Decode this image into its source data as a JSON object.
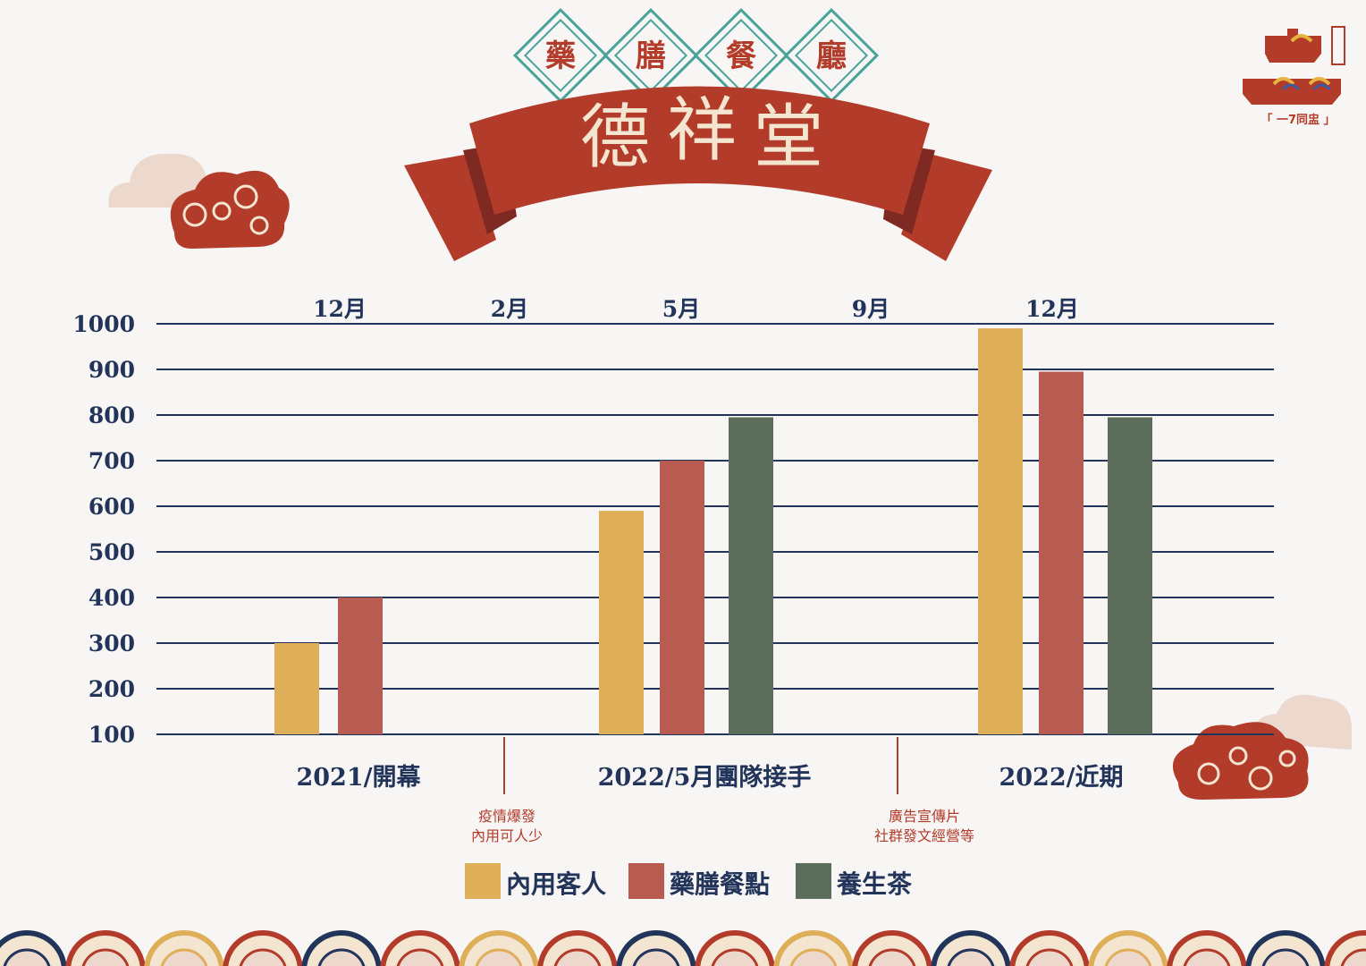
{
  "header": {
    "subtitle_chars": [
      "藥",
      "膳",
      "餐",
      "廳"
    ],
    "banner_chars": [
      "德",
      "祥",
      "堂"
    ]
  },
  "logo": {
    "caption": "「 一7同盅 」"
  },
  "colors": {
    "navy": "#22345a",
    "red": "#b33b2a",
    "dine_in": "#deae58",
    "herbal_meal": "#b85b50",
    "herbal_tea": "#5c6e5b",
    "cream": "#f3e5d0"
  },
  "chart_data": {
    "type": "bar",
    "title": "",
    "xlabel": "",
    "ylabel": "",
    "ylim": [
      100,
      1000
    ],
    "yticks": [
      100,
      200,
      300,
      400,
      500,
      600,
      700,
      800,
      900,
      1000
    ],
    "grid": true,
    "legend_position": "bottom-center",
    "month_labels": [
      "12月",
      "2月",
      "5月",
      "9月",
      "12月"
    ],
    "categories": [
      "2021/開幕",
      "2022/5月團隊接手",
      "2022/近期"
    ],
    "series": [
      {
        "name": "內用客人",
        "color": "#deae58",
        "values": [
          300,
          590,
          990
        ]
      },
      {
        "name": "藥膳餐點",
        "color": "#b85b50",
        "values": [
          400,
          700,
          895
        ]
      },
      {
        "name": "養生茶",
        "color": "#5c6e5b",
        "values": [
          null,
          795,
          795
        ]
      }
    ],
    "annotations": [
      {
        "lines": [
          "疫情爆發",
          "內用可人少"
        ],
        "after_category": 0
      },
      {
        "lines": [
          "廣告宣傳片",
          "社群發文經營等"
        ],
        "after_category": 1
      }
    ]
  }
}
